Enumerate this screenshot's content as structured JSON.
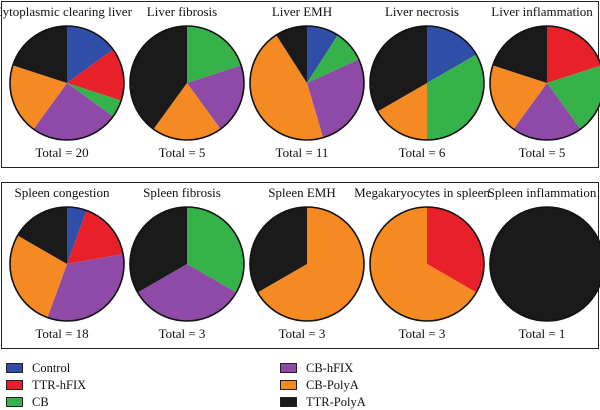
{
  "colors": {
    "Control": "#2e4ea8",
    "TTR-hFIX": "#e8202a",
    "CB": "#35b24a",
    "CB-hFIX": "#8e4aa6",
    "CB-PolyA": "#f68a22",
    "TTR-PolyA": "#1a1a1a"
  },
  "legend": {
    "items": [
      {
        "label": "Control",
        "color": "#2e4ea8"
      },
      {
        "label": "TTR-hFIX",
        "color": "#e8202a"
      },
      {
        "label": "CB",
        "color": "#35b24a"
      },
      {
        "label": "CB-hFIX",
        "color": "#8e4aa6"
      },
      {
        "label": "CB-PolyA",
        "color": "#f68a22"
      },
      {
        "label": "TTR-PolyA",
        "color": "#1a1a1a"
      }
    ]
  },
  "chart_data": [
    {
      "type": "pie",
      "title": "Cytoplasmic clearing liver",
      "total_label": "Total = 20",
      "categories": [
        "Control",
        "TTR-hFIX",
        "CB",
        "CB-hFIX",
        "CB-PolyA",
        "TTR-PolyA"
      ],
      "values": [
        3,
        3,
        1,
        5,
        4,
        4
      ]
    },
    {
      "type": "pie",
      "title": "Liver fibrosis",
      "total_label": "Total = 5",
      "categories": [
        "Control",
        "TTR-hFIX",
        "CB",
        "CB-hFIX",
        "CB-PolyA",
        "TTR-PolyA"
      ],
      "values": [
        0,
        0,
        1,
        1,
        1,
        2
      ]
    },
    {
      "type": "pie",
      "title": "Liver EMH",
      "total_label": "Total = 11",
      "categories": [
        "Control",
        "TTR-hFIX",
        "CB",
        "CB-hFIX",
        "CB-PolyA",
        "TTR-PolyA"
      ],
      "values": [
        1,
        0,
        1,
        3,
        5,
        1
      ]
    },
    {
      "type": "pie",
      "title": "Liver necrosis",
      "total_label": "Total = 6",
      "categories": [
        "Control",
        "TTR-hFIX",
        "CB",
        "CB-hFIX",
        "CB-PolyA",
        "TTR-PolyA"
      ],
      "values": [
        1,
        0,
        2,
        0,
        1,
        2
      ]
    },
    {
      "type": "pie",
      "title": "Liver inflammation",
      "total_label": "Total = 5",
      "categories": [
        "Control",
        "TTR-hFIX",
        "CB",
        "CB-hFIX",
        "CB-PolyA",
        "TTR-PolyA"
      ],
      "values": [
        0,
        1,
        1,
        1,
        1,
        1
      ]
    },
    {
      "type": "pie",
      "title": "Spleen congestion",
      "total_label": "Total = 18",
      "categories": [
        "Control",
        "TTR-hFIX",
        "CB",
        "CB-hFIX",
        "CB-PolyA",
        "TTR-PolyA"
      ],
      "values": [
        1,
        3,
        0,
        6,
        5,
        3
      ]
    },
    {
      "type": "pie",
      "title": "Spleen fibrosis",
      "total_label": "Total = 3",
      "categories": [
        "Control",
        "TTR-hFIX",
        "CB",
        "CB-hFIX",
        "CB-PolyA",
        "TTR-PolyA"
      ],
      "values": [
        0,
        0,
        1,
        1,
        0,
        1
      ]
    },
    {
      "type": "pie",
      "title": "Spleen EMH",
      "total_label": "Total = 3",
      "categories": [
        "Control",
        "TTR-hFIX",
        "CB",
        "CB-hFIX",
        "CB-PolyA",
        "TTR-PolyA"
      ],
      "values": [
        0,
        0,
        0,
        0,
        2,
        1
      ]
    },
    {
      "type": "pie",
      "title": "Megakaryocytes in spleen",
      "total_label": "Total = 3",
      "categories": [
        "Control",
        "TTR-hFIX",
        "CB",
        "CB-hFIX",
        "CB-PolyA",
        "TTR-PolyA"
      ],
      "values": [
        0,
        1,
        0,
        0,
        2,
        0
      ]
    },
    {
      "type": "pie",
      "title": "Spleen inflammation",
      "total_label": "Total = 1",
      "categories": [
        "Control",
        "TTR-hFIX",
        "CB",
        "CB-hFIX",
        "CB-PolyA",
        "TTR-PolyA"
      ],
      "values": [
        0,
        0,
        0,
        0,
        0,
        1
      ]
    }
  ]
}
